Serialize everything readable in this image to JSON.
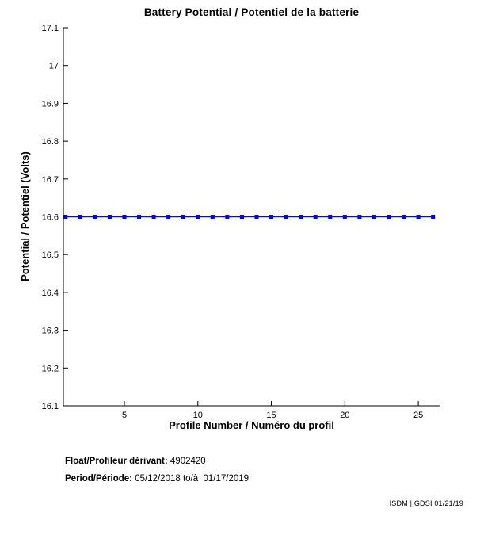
{
  "chart_data": {
    "type": "line",
    "title": "Battery Potential / Potentiel de la batterie",
    "xlabel": "Profile Number / Numéro du profil",
    "ylabel": "Potential / Potentiel (Volts)",
    "x": [
      1,
      2,
      3,
      4,
      5,
      6,
      7,
      8,
      9,
      10,
      11,
      12,
      13,
      14,
      15,
      16,
      17,
      18,
      19,
      20,
      21,
      22,
      23,
      24,
      25,
      26
    ],
    "y": [
      16.6,
      16.6,
      16.6,
      16.6,
      16.6,
      16.6,
      16.6,
      16.6,
      16.6,
      16.6,
      16.6,
      16.6,
      16.6,
      16.6,
      16.6,
      16.6,
      16.6,
      16.6,
      16.6,
      16.6,
      16.6,
      16.6,
      16.6,
      16.6,
      16.6,
      16.6
    ],
    "xlim": [
      0.85,
      26.45
    ],
    "ylim": [
      16.1,
      17.1
    ],
    "xticks": [
      5,
      10,
      15,
      20,
      25
    ],
    "xtick_labels": [
      "5",
      "10",
      "15",
      "20",
      "25"
    ],
    "yticks": [
      16.1,
      16.2,
      16.3,
      16.4,
      16.5,
      16.6,
      16.7,
      16.8,
      16.9,
      17.0,
      17.1
    ],
    "ytick_labels": [
      "16.1",
      "16.2",
      "16.3",
      "16.4",
      "16.5",
      "16.6",
      "16.7",
      "16.8",
      "16.9",
      "17",
      "17.1"
    ],
    "grid": false,
    "legend": null,
    "line_color": "#0000ff",
    "marker": "square",
    "axis_color": "#000000"
  },
  "footer": {
    "float_label": "Float/Profileur dérivant:",
    "float_value": " 4902420",
    "period_label": "Period/Période:",
    "period_value": " 05/12/2018 to/à  01/17/2019",
    "stamp": "ISDM | GDSI 01/21/19"
  }
}
